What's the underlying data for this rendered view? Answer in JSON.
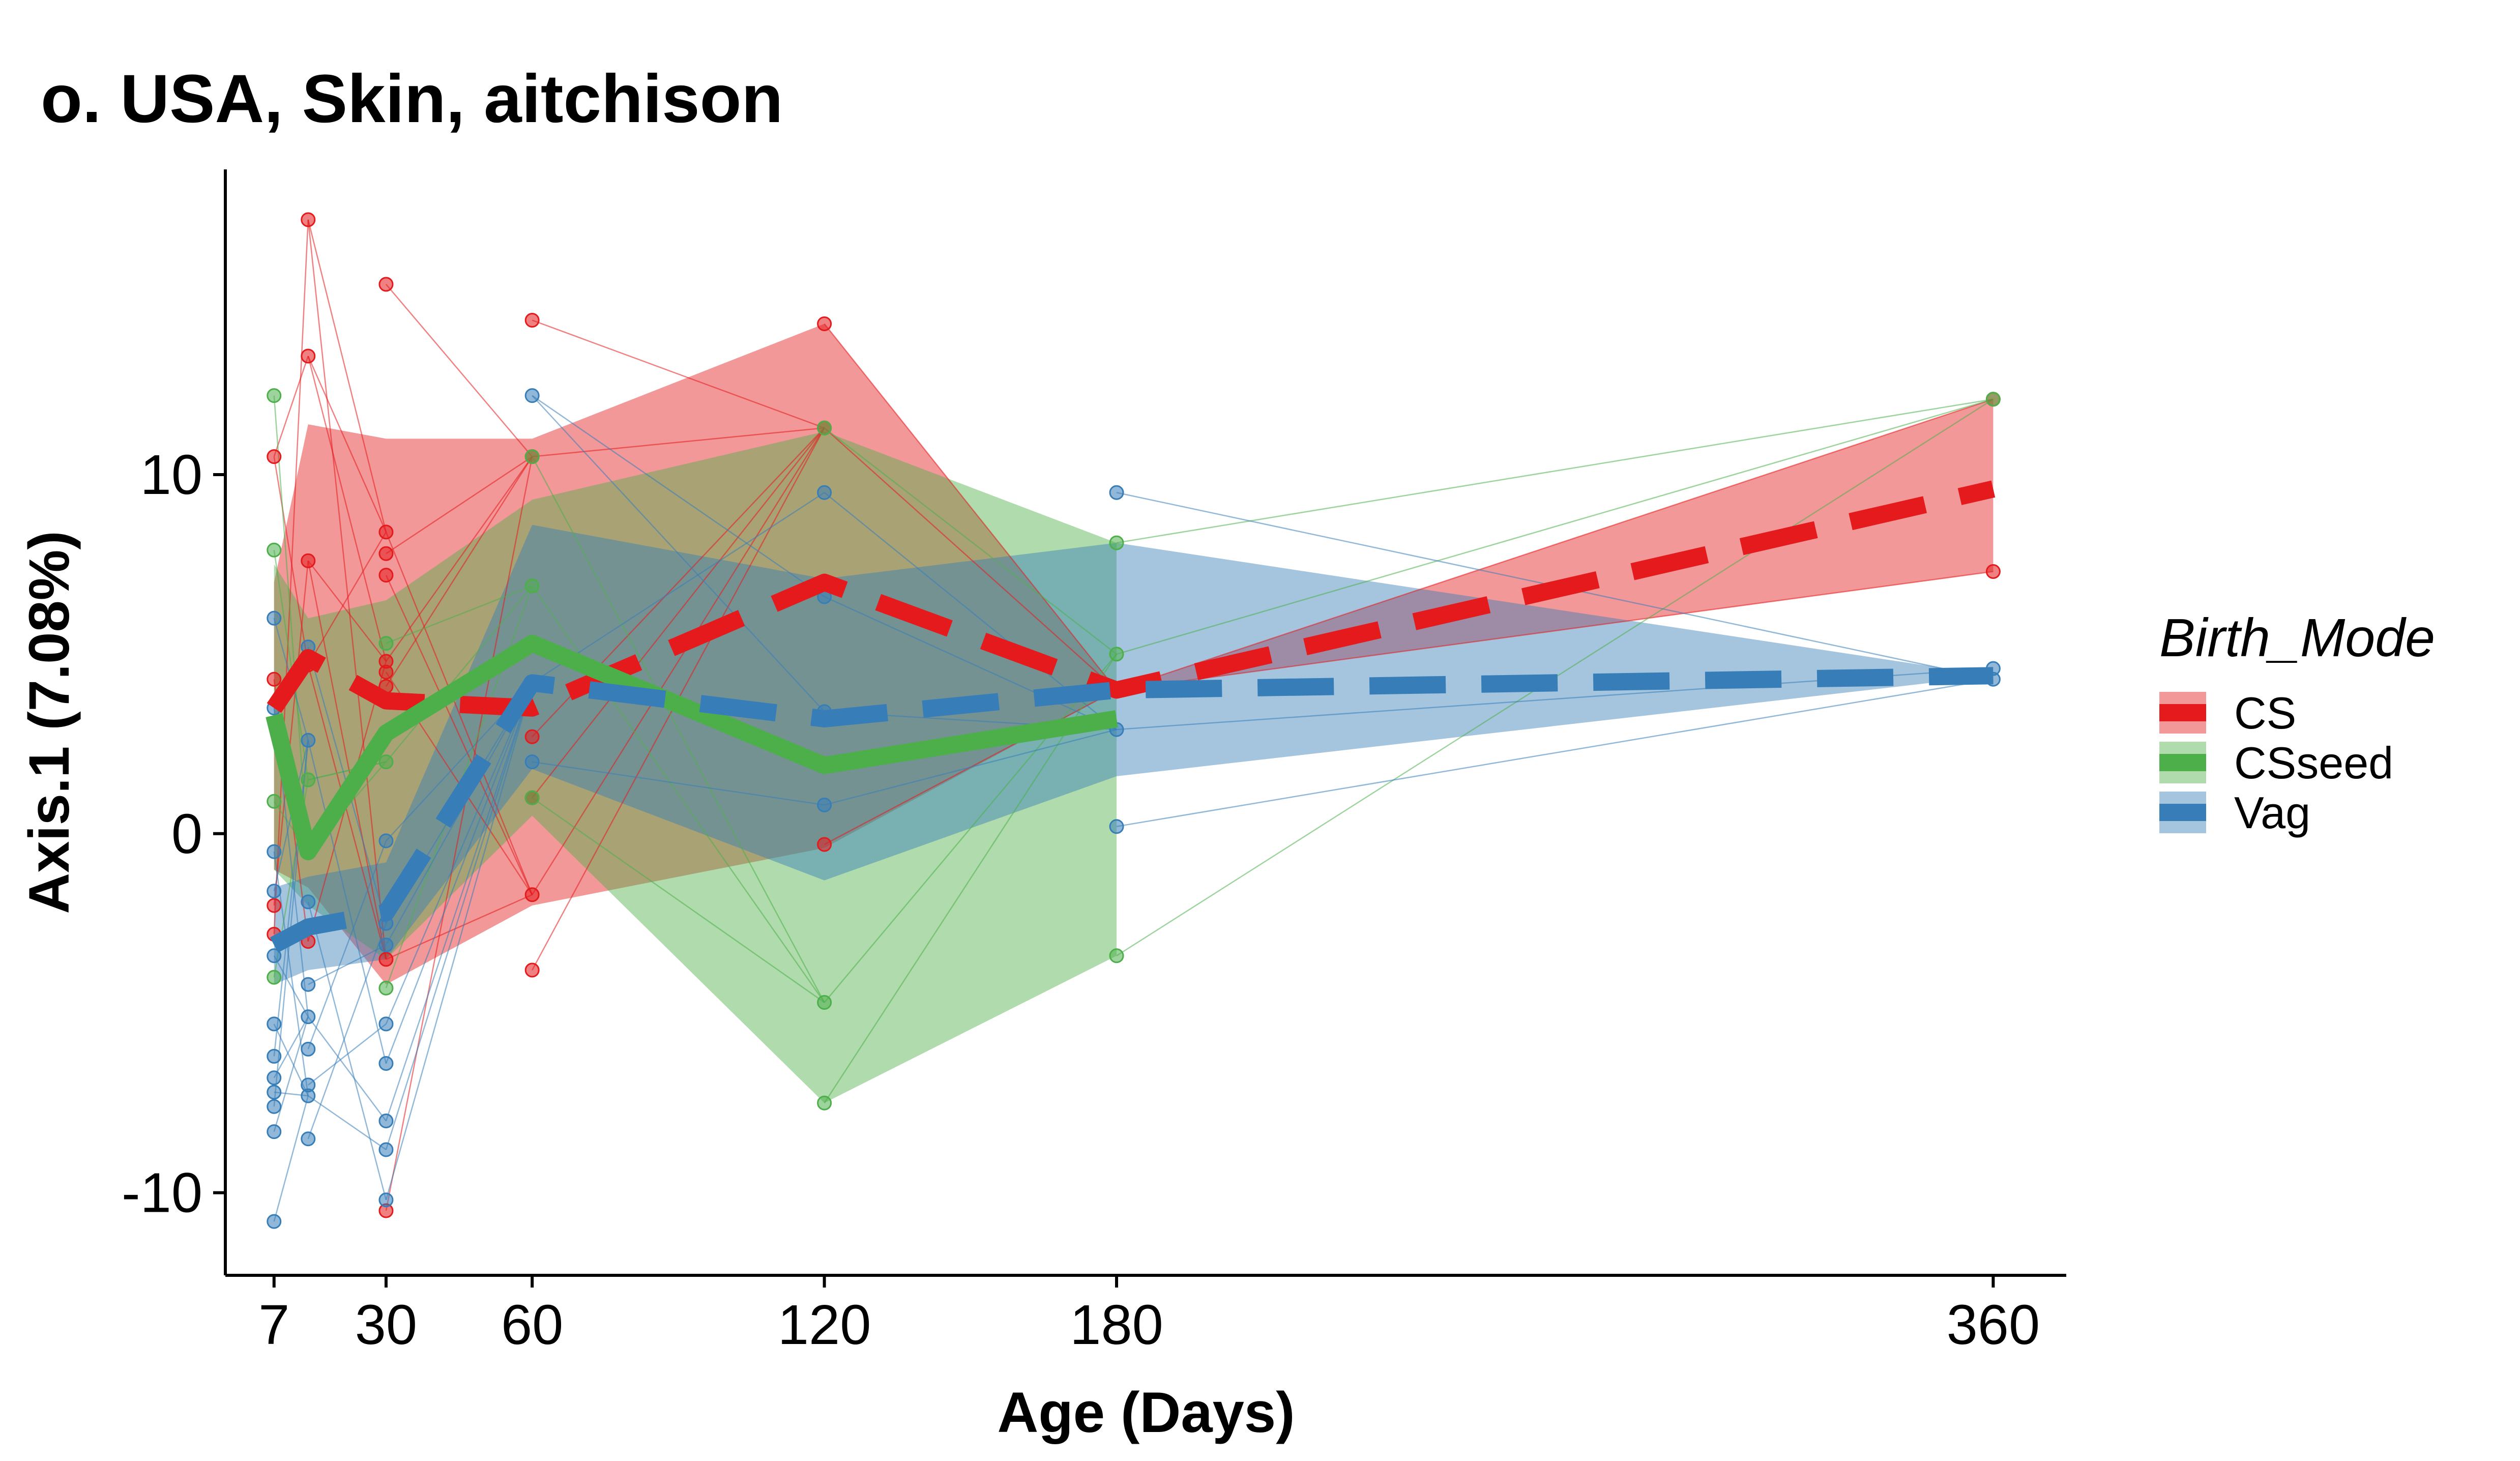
{
  "title": "o. USA, Skin, aitchison",
  "chart_data": {
    "type": "line",
    "title": "o. USA, Skin, aitchison",
    "xlabel": "Age (Days)",
    "ylabel": "Axis.1 (7.08%)",
    "xlim": [
      -3,
      375
    ],
    "ylim": [
      -12.3,
      18.5
    ],
    "x_ticks": [
      7,
      30,
      60,
      120,
      180,
      360
    ],
    "x_tick_labels": [
      "7",
      "30",
      "60",
      "120",
      "180",
      "360"
    ],
    "y_ticks": [
      -10,
      0,
      10
    ],
    "y_tick_labels": [
      "-10",
      "0",
      "10"
    ],
    "grid": false,
    "legend": {
      "title": "Birth_Mode",
      "placement": "right",
      "entries": [
        "CS",
        "CSseed",
        "Vag"
      ]
    },
    "series": [
      {
        "name": "CS",
        "color": "#e41a1c",
        "line_style": "dashed",
        "x": [
          7,
          14,
          30,
          60,
          120,
          180,
          360
        ],
        "y": [
          3.5,
          4.9,
          3.7,
          3.5,
          7.0,
          4.0,
          9.6
        ],
        "band_upper": [
          7.0,
          11.4,
          11.0,
          11.0,
          14.2,
          4.0,
          12.1
        ],
        "band_lower": [
          -1.0,
          -1.5,
          -4.2,
          -2.0,
          -0.4,
          4.0,
          7.3
        ],
        "points": [
          [
            7,
            10.5
          ],
          [
            7,
            4.3
          ],
          [
            7,
            -2.0
          ],
          [
            7,
            -2.8
          ],
          [
            14,
            17.1
          ],
          [
            14,
            13.3
          ],
          [
            14,
            7.6
          ],
          [
            14,
            4.7
          ],
          [
            14,
            -3.0
          ],
          [
            30,
            15.3
          ],
          [
            30,
            8.4
          ],
          [
            30,
            7.8
          ],
          [
            30,
            7.2
          ],
          [
            30,
            4.8
          ],
          [
            30,
            4.5
          ],
          [
            30,
            4.1
          ],
          [
            30,
            -3.5
          ],
          [
            30,
            -10.5
          ],
          [
            60,
            14.3
          ],
          [
            60,
            10.5
          ],
          [
            60,
            2.7
          ],
          [
            60,
            1.0
          ],
          [
            60,
            -1.7
          ],
          [
            60,
            -3.8
          ],
          [
            120,
            14.2
          ],
          [
            120,
            11.3
          ],
          [
            120,
            -0.3
          ],
          [
            180,
            4.0
          ],
          [
            360,
            12.1
          ],
          [
            360,
            7.3
          ]
        ]
      },
      {
        "name": "CSseed",
        "color": "#4daf4a",
        "line_style": "solid",
        "x": [
          7,
          14,
          30,
          60,
          120,
          180
        ],
        "y": [
          3.3,
          -0.5,
          2.8,
          5.3,
          1.9,
          3.2
        ],
        "band_upper": [
          7.5,
          6.0,
          6.5,
          9.3,
          11.2,
          8.1
        ],
        "band_lower": [
          -1.0,
          -2.0,
          -3.5,
          0.5,
          -7.5,
          -3.4
        ],
        "points": [
          [
            7,
            12.2
          ],
          [
            7,
            7.9
          ],
          [
            7,
            0.9
          ],
          [
            7,
            -4.0
          ],
          [
            14,
            1.5
          ],
          [
            14,
            -0.5
          ],
          [
            30,
            5.3
          ],
          [
            30,
            2.0
          ],
          [
            30,
            -4.3
          ],
          [
            60,
            10.5
          ],
          [
            60,
            6.9
          ],
          [
            60,
            1.0
          ],
          [
            120,
            11.3
          ],
          [
            120,
            -4.7
          ],
          [
            120,
            -7.5
          ],
          [
            180,
            8.1
          ],
          [
            180,
            5.0
          ],
          [
            180,
            -3.4
          ],
          [
            360,
            12.1
          ]
        ]
      },
      {
        "name": "Vag",
        "color": "#377eb8",
        "line_style": "dashed",
        "x": [
          7,
          14,
          30,
          60,
          120,
          180,
          360
        ],
        "y": [
          -3.1,
          -2.6,
          -2.2,
          4.2,
          3.2,
          4.0,
          4.4
        ],
        "band_upper": [
          -1.5,
          -1.2,
          -0.8,
          8.6,
          7.1,
          8.1,
          4.4
        ],
        "band_lower": [
          -4.2,
          -3.8,
          -3.5,
          1.8,
          -1.3,
          1.6,
          4.4
        ],
        "points": [
          [
            7,
            6.0
          ],
          [
            7,
            3.5
          ],
          [
            7,
            -0.5
          ],
          [
            7,
            -1.6
          ],
          [
            7,
            -3.4
          ],
          [
            7,
            -5.3
          ],
          [
            7,
            -6.2
          ],
          [
            7,
            -6.8
          ],
          [
            7,
            -7.2
          ],
          [
            7,
            -7.6
          ],
          [
            7,
            -8.3
          ],
          [
            7,
            -10.8
          ],
          [
            14,
            5.2
          ],
          [
            14,
            2.6
          ],
          [
            14,
            -1.9
          ],
          [
            14,
            -4.2
          ],
          [
            14,
            -5.1
          ],
          [
            14,
            -6.0
          ],
          [
            14,
            -7.0
          ],
          [
            14,
            -7.3
          ],
          [
            14,
            -8.5
          ],
          [
            30,
            -0.2
          ],
          [
            30,
            -2.5
          ],
          [
            30,
            -3.1
          ],
          [
            30,
            -5.3
          ],
          [
            30,
            -6.4
          ],
          [
            30,
            -8.0
          ],
          [
            30,
            -8.8
          ],
          [
            30,
            -10.2
          ],
          [
            60,
            12.2
          ],
          [
            60,
            4.2
          ],
          [
            60,
            2.0
          ],
          [
            120,
            9.5
          ],
          [
            120,
            6.6
          ],
          [
            120,
            3.4
          ],
          [
            120,
            0.8
          ],
          [
            180,
            9.5
          ],
          [
            180,
            2.9
          ],
          [
            180,
            0.2
          ],
          [
            360,
            4.6
          ],
          [
            360,
            4.3
          ]
        ]
      }
    ]
  }
}
